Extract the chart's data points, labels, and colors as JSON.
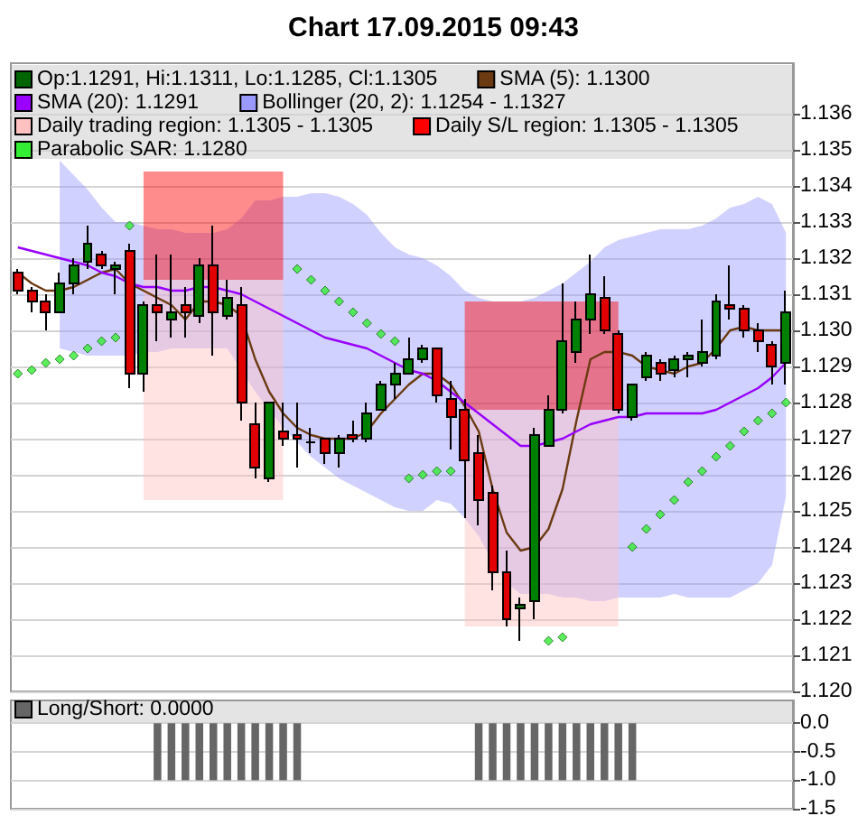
{
  "chart_data": [
    {
      "type": "candlestick",
      "title": "Chart 17.09.2015 09:43",
      "categories": [
        null,
        null,
        null,
        null,
        null,
        null,
        null,
        null,
        null,
        null,
        null,
        null,
        null,
        null,
        null,
        null,
        null,
        null,
        null,
        null,
        null,
        null,
        null,
        null,
        null,
        null,
        null,
        null,
        null,
        null,
        null,
        null,
        null,
        null,
        null,
        null,
        null,
        null,
        null,
        null,
        null,
        null,
        null,
        null,
        null,
        null,
        null,
        null,
        null,
        null,
        null,
        null,
        null,
        null,
        null,
        null
      ],
      "ylim": [
        1.12,
        1.1374
      ],
      "yticks": [
        {
          "value": 1.12,
          "label": "1.120"
        },
        {
          "value": 1.121,
          "label": "1.121"
        },
        {
          "value": 1.122,
          "label": "1.122"
        },
        {
          "value": 1.123,
          "label": "1.123"
        },
        {
          "value": 1.124,
          "label": "1.124"
        },
        {
          "value": 1.125,
          "label": "1.125"
        },
        {
          "value": 1.126,
          "label": "1.126"
        },
        {
          "value": 1.127,
          "label": "1.127"
        },
        {
          "value": 1.128,
          "label": "1.128"
        },
        {
          "value": 1.129,
          "label": "1.129"
        },
        {
          "value": 1.13,
          "label": "1.130"
        },
        {
          "value": 1.131,
          "label": "1.131"
        },
        {
          "value": 1.132,
          "label": "1.132"
        },
        {
          "value": 1.133,
          "label": "1.133"
        },
        {
          "value": 1.134,
          "label": "1.134"
        },
        {
          "value": 1.135,
          "label": "1.135"
        },
        {
          "value": 1.136,
          "label": "1.136"
        }
      ],
      "grid": "y",
      "legend": "top left",
      "tick_labels": "y",
      "marker": "none",
      "series": [
        {
          "name": "Op:1.1291, Hi:1.1311, Lo:1.1285, Cl:1.1305",
          "color": "#006400",
          "colors": [
            "#e00000",
            "#e00000",
            "#e00000",
            "#008000",
            "#008000",
            "#008000",
            "#e00000",
            "#008000",
            "#e00000",
            "#008000",
            "#e00000",
            "#008000",
            "#e00000",
            "#008000",
            "#e00000",
            "#008000",
            "#e00000",
            "#e00000",
            "#008000",
            "#e00000",
            "#e00000",
            "#000000",
            "#e00000",
            "#008000",
            "#e00000",
            "#008000",
            "#008000",
            "#008000",
            "#008000",
            "#008000",
            "#e00000",
            "#e00000",
            "#e00000",
            "#e00000",
            "#e00000",
            "#e00000",
            "#008000",
            "#008000",
            "#008000",
            "#008000",
            "#008000",
            "#008000",
            "#e00000",
            "#e00000",
            "#008000",
            "#008000",
            "#e00000",
            "#008000",
            "#008000",
            "#008000",
            "#008000",
            "#e00000",
            "#e00000",
            "#e00000",
            "#e00000",
            "#008000"
          ],
          "ohlc": [
            [
              1.1316,
              1.1317,
              1.131,
              1.1311
            ],
            [
              1.1311,
              1.1312,
              1.1305,
              1.1308
            ],
            [
              1.1308,
              1.131,
              1.13,
              1.1305
            ],
            [
              1.1305,
              1.1316,
              1.1305,
              1.1313
            ],
            [
              1.1313,
              1.132,
              1.131,
              1.1318
            ],
            [
              1.1319,
              1.1329,
              1.1317,
              1.1324
            ],
            [
              1.1321,
              1.1322,
              1.1317,
              1.1318
            ],
            [
              1.1317,
              1.1319,
              1.131,
              1.1318
            ],
            [
              1.1322,
              1.1324,
              1.1284,
              1.1288
            ],
            [
              1.1288,
              1.1308,
              1.1283,
              1.1307
            ],
            [
              1.1307,
              1.1321,
              1.1297,
              1.1305
            ],
            [
              1.1303,
              1.1321,
              1.1298,
              1.1305
            ],
            [
              1.1307,
              1.1312,
              1.1298,
              1.1305
            ],
            [
              1.1304,
              1.132,
              1.1302,
              1.1318
            ],
            [
              1.1318,
              1.1329,
              1.1293,
              1.1305
            ],
            [
              1.1304,
              1.1314,
              1.1303,
              1.1309
            ],
            [
              1.1307,
              1.1312,
              1.1275,
              1.128
            ],
            [
              1.1274,
              1.128,
              1.1259,
              1.1262
            ],
            [
              1.1259,
              1.128,
              1.1258,
              1.128
            ],
            [
              1.1272,
              1.128,
              1.1268,
              1.127
            ],
            [
              1.1271,
              1.128,
              1.1262,
              1.127
            ],
            [
              1.1269,
              1.1273,
              1.1266,
              1.1269
            ],
            [
              1.127,
              1.127,
              1.1263,
              1.1266
            ],
            [
              1.1266,
              1.1271,
              1.1262,
              1.127
            ],
            [
              1.1271,
              1.1275,
              1.1269,
              1.127
            ],
            [
              1.127,
              1.128,
              1.1269,
              1.1277
            ],
            [
              1.1278,
              1.1286,
              1.1278,
              1.1285
            ],
            [
              1.1285,
              1.1291,
              1.1281,
              1.1288
            ],
            [
              1.1288,
              1.1298,
              1.1288,
              1.1292
            ],
            [
              1.1292,
              1.1296,
              1.1291,
              1.1295
            ],
            [
              1.1295,
              1.1295,
              1.128,
              1.1282
            ],
            [
              1.1281,
              1.1286,
              1.1267,
              1.1276
            ],
            [
              1.1278,
              1.1281,
              1.1248,
              1.1264
            ],
            [
              1.1266,
              1.1271,
              1.1246,
              1.1253
            ],
            [
              1.1255,
              1.1257,
              1.1228,
              1.1233
            ],
            [
              1.1233,
              1.1239,
              1.1218,
              1.122
            ],
            [
              1.1223,
              1.1226,
              1.1214,
              1.1224
            ],
            [
              1.1225,
              1.1273,
              1.122,
              1.1271
            ],
            [
              1.1268,
              1.1282,
              1.1268,
              1.1278
            ],
            [
              1.1278,
              1.1313,
              1.1277,
              1.1297
            ],
            [
              1.1294,
              1.1308,
              1.1291,
              1.1303
            ],
            [
              1.1303,
              1.1321,
              1.1299,
              1.131
            ],
            [
              1.1309,
              1.1315,
              1.1299,
              1.13
            ],
            [
              1.1299,
              1.13,
              1.1277,
              1.1278
            ],
            [
              1.1276,
              1.1285,
              1.1275,
              1.1285
            ],
            [
              1.1287,
              1.1294,
              1.1286,
              1.1293
            ],
            [
              1.1291,
              1.1292,
              1.1286,
              1.1288
            ],
            [
              1.1289,
              1.1293,
              1.1287,
              1.1292
            ],
            [
              1.1292,
              1.1294,
              1.1287,
              1.1293
            ],
            [
              1.1291,
              1.1303,
              1.129,
              1.1294
            ],
            [
              1.1293,
              1.131,
              1.1292,
              1.1308
            ],
            [
              1.1307,
              1.1318,
              1.1303,
              1.1306
            ],
            [
              1.1306,
              1.1307,
              1.1298,
              1.13
            ],
            [
              1.13,
              1.1302,
              1.1294,
              1.1297
            ],
            [
              1.1296,
              1.1297,
              1.1285,
              1.129
            ],
            [
              1.1291,
              1.1311,
              1.1285,
              1.1305
            ]
          ]
        },
        {
          "name": "SMA (5): 1.1300",
          "type": "line",
          "color": "#6b3a10",
          "values": [
            1.1316,
            1.1313,
            1.1311,
            1.1311,
            1.1312,
            1.1314,
            1.1316,
            1.1317,
            1.1313,
            1.1311,
            1.1309,
            1.1307,
            1.1303,
            1.1308,
            1.1308,
            1.1307,
            1.1304,
            1.1292,
            1.1283,
            1.1277,
            1.1273,
            1.1271,
            1.127,
            1.127,
            1.127,
            1.1272,
            1.1277,
            1.1281,
            1.1285,
            1.1288,
            1.1288,
            1.1285,
            1.1279,
            1.1272,
            1.1256,
            1.1244,
            1.1239,
            1.124,
            1.1245,
            1.1256,
            1.1275,
            1.1292,
            1.1294,
            1.1294,
            1.1293,
            1.129,
            1.1289,
            1.1288,
            1.129,
            1.1291,
            1.1295,
            1.13,
            1.1301,
            1.13,
            1.13,
            1.13
          ]
        },
        {
          "name": "SMA (20): 1.1291",
          "type": "line",
          "color": "#9900ff",
          "values": [
            1.1323,
            1.1322,
            1.1321,
            1.132,
            1.1319,
            1.1318,
            1.1316,
            1.1315,
            1.1313,
            1.1312,
            1.1312,
            1.1311,
            1.1311,
            1.1312,
            1.1312,
            1.1311,
            1.131,
            1.1308,
            1.1306,
            1.1304,
            1.1302,
            1.13,
            1.1298,
            1.1297,
            1.1296,
            1.1295,
            1.1293,
            1.1291,
            1.1289,
            1.1288,
            1.1286,
            1.1283,
            1.128,
            1.1277,
            1.1274,
            1.1271,
            1.1268,
            1.1268,
            1.1269,
            1.127,
            1.1272,
            1.1274,
            1.1275,
            1.1276,
            1.1276,
            1.1277,
            1.1277,
            1.1277,
            1.1277,
            1.1277,
            1.1278,
            1.128,
            1.1282,
            1.1284,
            1.1287,
            1.1291
          ]
        },
        {
          "name": "Bollinger (20, 2): 1.1254 - 1.1327",
          "type": "area",
          "color": "#9999ff",
          "values": [
            null,
            null,
            null,
            null,
            null,
            null,
            null,
            null,
            null,
            null,
            null,
            null,
            null,
            null,
            null,
            null,
            null,
            null,
            null,
            null,
            null,
            null,
            null,
            null,
            null,
            null,
            null,
            null,
            null,
            null,
            null,
            null,
            null,
            null,
            null,
            null,
            null,
            null,
            null,
            null,
            null,
            null,
            null,
            null,
            null,
            null,
            null,
            null,
            null,
            null,
            null,
            null,
            null,
            null,
            null,
            null
          ],
          "lower": [
            null,
            null,
            null,
            1.1295,
            1.1294,
            1.1293,
            1.1293,
            1.1293,
            1.1293,
            1.1294,
            1.1294,
            1.1295,
            1.1295,
            1.1295,
            1.1295,
            1.1295,
            1.1289,
            1.1283,
            1.1278,
            1.1273,
            1.1269,
            1.1265,
            1.1262,
            1.1259,
            1.1257,
            1.1255,
            1.1253,
            1.1251,
            1.125,
            1.125,
            1.1253,
            1.1252,
            1.1248,
            1.1243,
            1.1236,
            1.123,
            1.1227,
            1.1227,
            1.1227,
            1.1226,
            1.1226,
            1.1225,
            1.1225,
            1.1226,
            1.1226,
            1.1226,
            1.1226,
            1.1227,
            1.1226,
            1.1226,
            1.1226,
            1.1226,
            1.1228,
            1.123,
            1.1235,
            1.1254
          ],
          "upper": [
            null,
            null,
            null,
            1.1347,
            1.1343,
            1.1339,
            1.1334,
            1.133,
            1.133,
            1.1329,
            1.1328,
            1.1328,
            1.1327,
            1.1327,
            1.1327,
            1.1328,
            1.1331,
            1.1336,
            1.1336,
            1.1337,
            1.1337,
            1.1338,
            1.1338,
            1.1337,
            1.1335,
            1.1332,
            1.1327,
            1.1323,
            1.1321,
            1.132,
            1.1318,
            1.1315,
            1.1311,
            1.1309,
            1.1308,
            1.1308,
            1.1308,
            1.1309,
            1.1311,
            1.1313,
            1.1316,
            1.1319,
            1.1323,
            1.1325,
            1.1326,
            1.1327,
            1.1328,
            1.1328,
            1.1328,
            1.1329,
            1.1331,
            1.1334,
            1.1335,
            1.1337,
            1.1335,
            1.1327
          ]
        },
        {
          "name": "Daily trading region: 1.1305 - 1.1305",
          "type": "area",
          "color": "#ffc0c0",
          "values": [
            null,
            null,
            null,
            null,
            null,
            null,
            null,
            null,
            null,
            null,
            null,
            null,
            null,
            null,
            null,
            null,
            null,
            null,
            null,
            null,
            null,
            null,
            null,
            null,
            null,
            null,
            null,
            null,
            null,
            null,
            null,
            null,
            null,
            null,
            null,
            null,
            null,
            null,
            null,
            null,
            null,
            null,
            null,
            null,
            null,
            null,
            null,
            null,
            null,
            null,
            null,
            null,
            null,
            null,
            null,
            null
          ],
          "lower": [
            null,
            null,
            null,
            null,
            null,
            null,
            null,
            null,
            null,
            1.1253,
            1.1253,
            1.1253,
            1.1253,
            1.1253,
            1.1253,
            1.1253,
            1.1253,
            1.1253,
            1.1253,
            1.1253,
            null,
            null,
            null,
            null,
            null,
            null,
            null,
            null,
            null,
            null,
            null,
            null,
            1.1218,
            1.1218,
            1.1218,
            1.1218,
            1.1218,
            1.1218,
            1.1218,
            1.1218,
            1.1218,
            1.1218,
            1.1218,
            1.1218,
            null,
            null,
            null,
            null,
            null,
            null,
            null,
            null,
            null,
            null,
            null,
            null
          ],
          "upper": [
            null,
            null,
            null,
            null,
            null,
            null,
            null,
            null,
            null,
            1.1314,
            1.1314,
            1.1314,
            1.1314,
            1.1314,
            1.1314,
            1.1314,
            1.1314,
            1.1314,
            1.1314,
            1.1314,
            null,
            null,
            null,
            null,
            null,
            null,
            null,
            null,
            null,
            null,
            null,
            null,
            1.1278,
            1.1278,
            1.1278,
            1.1278,
            1.1278,
            1.1278,
            1.1278,
            1.1278,
            1.1278,
            1.1278,
            1.1278,
            1.1278,
            null,
            null,
            null,
            null,
            null,
            null,
            null,
            null,
            null,
            null,
            null,
            null
          ]
        },
        {
          "name": "Daily S/L region: 1.1305 - 1.1305",
          "type": "area",
          "color": "#ff0000",
          "values": [
            null,
            null,
            null,
            null,
            null,
            null,
            null,
            null,
            null,
            null,
            null,
            null,
            null,
            null,
            null,
            null,
            null,
            null,
            null,
            null,
            null,
            null,
            null,
            null,
            null,
            null,
            null,
            null,
            null,
            null,
            null,
            null,
            null,
            null,
            null,
            null,
            null,
            null,
            null,
            null,
            null,
            null,
            null,
            null,
            null,
            null,
            null,
            null,
            null,
            null,
            null,
            null,
            null,
            null,
            null,
            null
          ],
          "lower": [
            null,
            null,
            null,
            null,
            null,
            null,
            null,
            null,
            null,
            1.1314,
            1.1314,
            1.1314,
            1.1314,
            1.1314,
            1.1314,
            1.1314,
            1.1314,
            1.1314,
            1.1314,
            1.1314,
            null,
            null,
            null,
            null,
            null,
            null,
            null,
            null,
            null,
            null,
            null,
            null,
            1.1278,
            1.1278,
            1.1278,
            1.1278,
            1.1278,
            1.1278,
            1.1278,
            1.1278,
            1.1278,
            1.1278,
            1.1278,
            1.1278,
            null,
            null,
            null,
            null,
            null,
            null,
            null,
            null,
            null,
            null,
            null,
            null
          ],
          "upper": [
            null,
            null,
            null,
            null,
            null,
            null,
            null,
            null,
            null,
            1.1344,
            1.1344,
            1.1344,
            1.1344,
            1.1344,
            1.1344,
            1.1344,
            1.1344,
            1.1344,
            1.1344,
            1.1344,
            null,
            null,
            null,
            null,
            null,
            null,
            null,
            null,
            null,
            null,
            null,
            null,
            1.1308,
            1.1308,
            1.1308,
            1.1308,
            1.1308,
            1.1308,
            1.1308,
            1.1308,
            1.1308,
            1.1308,
            1.1308,
            1.1308,
            null,
            null,
            null,
            null,
            null,
            null,
            null,
            null,
            null,
            null,
            null,
            null
          ]
        },
        {
          "name": "Parabolic SAR: 1.1280",
          "type": "scatter",
          "color": "#33ee33",
          "marker": "diamond",
          "values": [
            1.1288,
            1.1289,
            1.1291,
            1.1292,
            1.1293,
            1.1295,
            1.1297,
            1.1298,
            1.1329,
            null,
            null,
            null,
            null,
            null,
            null,
            null,
            null,
            null,
            null,
            null,
            1.1317,
            1.1314,
            1.1311,
            1.1308,
            1.1305,
            1.1302,
            1.1299,
            1.1297,
            1.1259,
            1.126,
            1.1261,
            1.1261,
            null,
            null,
            null,
            null,
            null,
            null,
            1.1214,
            1.1215,
            null,
            null,
            null,
            null,
            1.124,
            1.1245,
            1.1249,
            1.1253,
            1.1258,
            1.1261,
            1.1265,
            1.1268,
            1.1272,
            1.1275,
            1.1277,
            1.128
          ]
        }
      ]
    },
    {
      "type": "bar",
      "categories": [
        null,
        null,
        null,
        null,
        null,
        null,
        null,
        null,
        null,
        null,
        null,
        null,
        null,
        null,
        null,
        null,
        null,
        null,
        null,
        null,
        null,
        null,
        null,
        null,
        null,
        null,
        null,
        null,
        null,
        null,
        null,
        null,
        null,
        null,
        null,
        null,
        null,
        null,
        null,
        null,
        null,
        null,
        null,
        null,
        null,
        null,
        null,
        null,
        null,
        null,
        null,
        null,
        null,
        null,
        null,
        null
      ],
      "ylim": [
        -1.5,
        0.4
      ],
      "yticks": [
        {
          "value": 0,
          "label": "0.0"
        },
        {
          "value": -0.5,
          "label": "-0.5"
        },
        {
          "value": -1,
          "label": "-1.0"
        },
        {
          "value": -1.5,
          "label": "-1.5"
        }
      ],
      "grid": "y",
      "legend": "top left",
      "tick_labels": "y",
      "series": [
        {
          "name": "Long/Short: 0.0000",
          "color": "#666666",
          "values": [
            0,
            0,
            0,
            0,
            0,
            0,
            0,
            0,
            0,
            0,
            -1,
            -1,
            -1,
            -1,
            -1,
            -1,
            -1,
            -1,
            -1,
            -1,
            -1,
            0,
            0,
            0,
            0,
            0,
            0,
            0,
            0,
            0,
            0,
            0,
            0,
            -1,
            -1,
            -1,
            -1,
            -1,
            -1,
            -1,
            -1,
            -1,
            -1,
            -1,
            -1,
            0,
            0,
            0,
            0,
            0,
            0,
            0,
            0,
            0,
            0,
            0
          ]
        }
      ]
    }
  ]
}
